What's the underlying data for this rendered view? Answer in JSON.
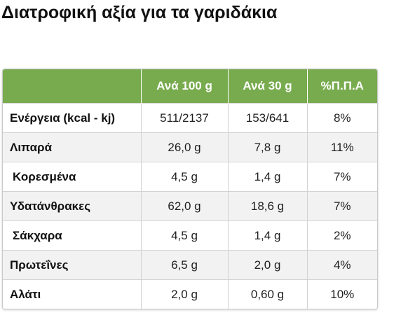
{
  "title": "Διατροφική αξία για τα γαριδάκια",
  "table": {
    "headers": [
      "",
      "Ανά 100 g",
      "Ανά 30 g",
      "%Π.Π.Α"
    ],
    "rows": [
      {
        "label": "Ενέργεια (kcal - kj)",
        "per100": "511/2137",
        "per30": "153/641",
        "pda": "8%"
      },
      {
        "label": "Λιπαρά",
        "per100": "26,0 g",
        "per30": "7,8 g",
        "pda": "11%"
      },
      {
        "label": "Κορεσμένα",
        "per100": "4,5 g",
        "per30": "1,4 g",
        "pda": "7%"
      },
      {
        "label": "Υδατάνθρακες",
        "per100": "62,0 g",
        "per30": "18,6 g",
        "pda": "7%"
      },
      {
        "label": "Σάκχαρα",
        "per100": "4,5 g",
        "per30": "1,4 g",
        "pda": "2%"
      },
      {
        "label": "Πρωτεΐνες",
        "per100": "6,5 g",
        "per30": "2,0 g",
        "pda": "4%"
      },
      {
        "label": "Αλάτι",
        "per100": "2,0 g",
        "per30": "0,60 g",
        "pda": "10%"
      }
    ]
  },
  "colors": {
    "header_bg": "#78ab4e",
    "header_text": "#ffffff",
    "stripe_bg": "#f2f2f2"
  }
}
